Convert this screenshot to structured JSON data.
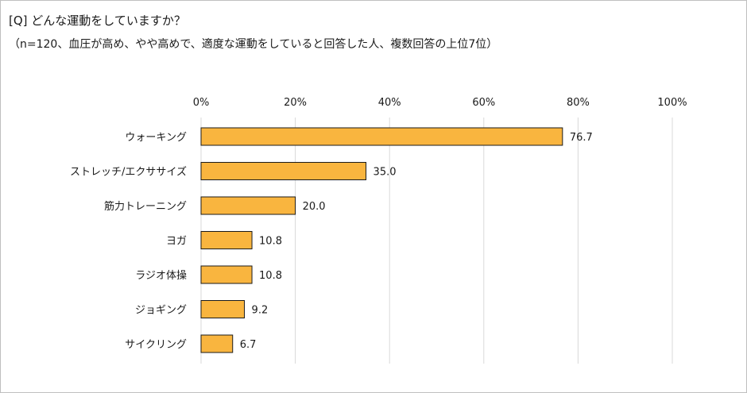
{
  "chart_data": {
    "type": "bar",
    "orientation": "horizontal",
    "title": "[Q] どんな運動をしていますか？",
    "subtitle": "（n=120、血圧が高め、やや高めで、適度な運動をしていると回答した人、複数回答の上位7位）",
    "categories": [
      "ウォーキング",
      "ストレッチ/エクササイズ",
      "筋力トレーニング",
      "ヨガ",
      "ラジオ体操",
      "ジョギング",
      "サイクリング"
    ],
    "values": [
      76.7,
      35.0,
      20.0,
      10.8,
      10.8,
      9.2,
      6.7
    ],
    "value_labels": [
      "76.7",
      "35.0",
      "20.0",
      "10.8",
      "10.8",
      "9.2",
      "6.7"
    ],
    "xlim": [
      0,
      100
    ],
    "ticks": [
      0,
      20,
      40,
      60,
      80,
      100
    ],
    "tick_labels": [
      "0%",
      "20%",
      "40%",
      "60%",
      "80%",
      "100%"
    ],
    "xaxis_position": "top",
    "grid": true,
    "legend": "none",
    "colors": {
      "bar": "#F9B53F",
      "bar_edge": "#1a1a1a",
      "grid": "#d9d9d9"
    }
  }
}
